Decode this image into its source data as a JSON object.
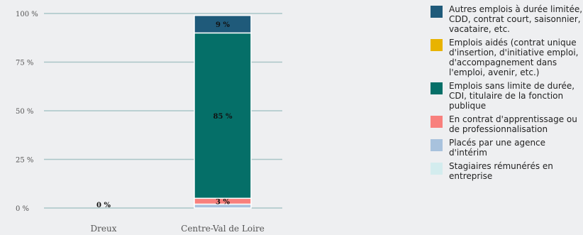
{
  "chart_data": {
    "type": "bar",
    "stacked": true,
    "categories": [
      "Dreux",
      "Centre-Val de Loire"
    ],
    "y_ticks": [
      "0 %",
      "25 %",
      "50 %",
      "75 %",
      "100 %"
    ],
    "ylim": [
      0,
      100
    ],
    "grid": true,
    "legend_position": "right",
    "series": [
      {
        "name": "Placés par une agence d'intérim",
        "color": "#a8c2dd",
        "values": [
          0,
          2
        ],
        "labels": [
          "",
          ""
        ]
      },
      {
        "name": "En contrat d'apprentissage ou de professionnalisation",
        "color": "#f8807d",
        "values": [
          0,
          3
        ],
        "labels": [
          "",
          "3 %"
        ]
      },
      {
        "name": "Emplois sans limite de durée, CDI, titulaire de la fonction publique",
        "color": "#056f68",
        "values": [
          0,
          85
        ],
        "labels": [
          "0 %",
          "85 %"
        ]
      },
      {
        "name": "Emplois aidés (contrat unique d'insertion, d'initiative emploi, d'accompagnement dans l'emploi, avenir, etc.)",
        "color": "#e8b300",
        "values": [
          0,
          0
        ],
        "labels": [
          "",
          ""
        ]
      },
      {
        "name": "Autres emplois à durée limitée, CDD, contrat court, saisonnier, vacataire, etc.",
        "color": "#1f5a7a",
        "values": [
          0,
          9
        ],
        "labels": [
          "",
          "9 %"
        ]
      },
      {
        "name": "Stagiaires rémunérés en entreprise",
        "color": "#d3ecee",
        "values": [
          0,
          0
        ],
        "labels": [
          "",
          ""
        ]
      }
    ],
    "legend_order": [
      4,
      3,
      2,
      1,
      0,
      5
    ]
  }
}
